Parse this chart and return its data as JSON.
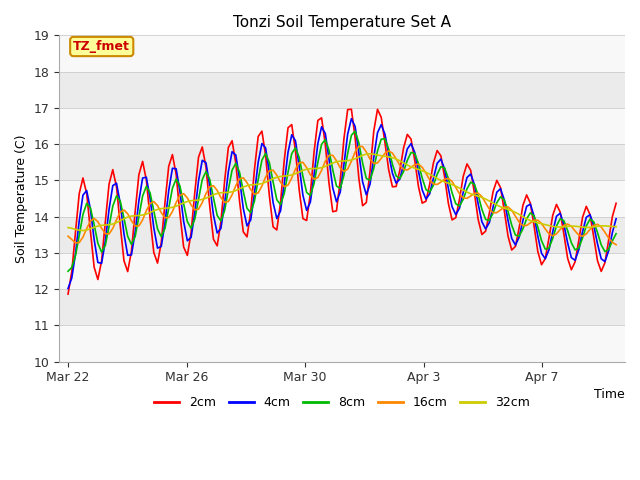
{
  "title": "Tonzi Soil Temperature Set A",
  "xlabel": "Time",
  "ylabel": "Soil Temperature (C)",
  "ylim": [
    10.0,
    19.0
  ],
  "yticks": [
    10.0,
    11.0,
    12.0,
    13.0,
    14.0,
    15.0,
    16.0,
    17.0,
    18.0,
    19.0
  ],
  "plot_bg_color": "#ebebeb",
  "annotation_text": "TZ_fmet",
  "annotation_bg": "#ffff99",
  "annotation_border": "#cc8800",
  "annotation_text_color": "#cc0000",
  "legend_entries": [
    "2cm",
    "4cm",
    "8cm",
    "16cm",
    "32cm"
  ],
  "line_colors": [
    "#ff0000",
    "#0000ff",
    "#00bb00",
    "#ff8800",
    "#cccc00"
  ],
  "line_width": 1.2,
  "xtick_labels": [
    "Mar 22",
    "Mar 26",
    "Mar 30",
    "Apr 3",
    "Apr 7"
  ],
  "xtick_positions": [
    0,
    4,
    8,
    12,
    16
  ],
  "n_days": 18.5,
  "n_per_day": 8
}
